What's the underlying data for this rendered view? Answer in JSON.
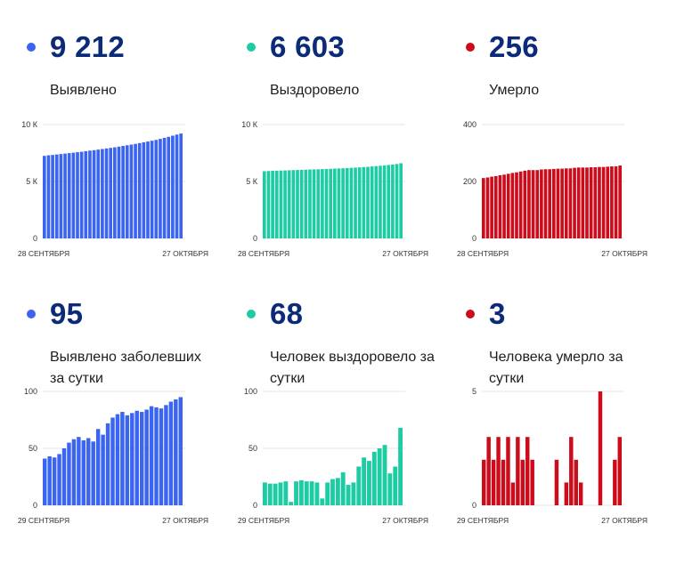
{
  "colors": {
    "blue": "#3b64f0",
    "green": "#1ecca4",
    "red": "#cc0c1a",
    "number": "#0b2a78"
  },
  "panels": [
    {
      "value": "9 212",
      "label": "Выявлено",
      "color_key": "blue"
    },
    {
      "value": "6 603",
      "label": "Выздоровело",
      "color_key": "green"
    },
    {
      "value": "256",
      "label": "Умерло",
      "color_key": "red"
    },
    {
      "value": "95",
      "label": "Выявлено заболевших за сутки",
      "color_key": "blue"
    },
    {
      "value": "68",
      "label": "Человек выздоровело за сутки",
      "color_key": "green"
    },
    {
      "value": "3",
      "label": "Человека умерло за сутки",
      "color_key": "red"
    }
  ],
  "chart_data": [
    {
      "type": "bar",
      "color_key": "blue",
      "ylim": [
        0,
        10000
      ],
      "yticks": [
        {
          "v": 0,
          "t": "0"
        },
        {
          "v": 5000,
          "t": "5 К"
        },
        {
          "v": 10000,
          "t": "10 К"
        }
      ],
      "xlabels": [
        "28 СЕНТЯБРЯ",
        "27 ОКТЯБРЯ"
      ],
      "values": [
        7250,
        7300,
        7330,
        7370,
        7410,
        7450,
        7490,
        7530,
        7570,
        7610,
        7660,
        7710,
        7750,
        7800,
        7850,
        7900,
        7950,
        8000,
        8060,
        8120,
        8180,
        8240,
        8300,
        8370,
        8440,
        8510,
        8580,
        8650,
        8740,
        8830,
        8920,
        9020,
        9117,
        9212
      ]
    },
    {
      "type": "bar",
      "color_key": "green",
      "ylim": [
        0,
        10000
      ],
      "yticks": [
        {
          "v": 0,
          "t": "0"
        },
        {
          "v": 5000,
          "t": "5 К"
        },
        {
          "v": 10000,
          "t": "10 К"
        }
      ],
      "xlabels": [
        "28 СЕНТЯБРЯ",
        "27 ОКТЯБРЯ"
      ],
      "values": [
        5900,
        5920,
        5935,
        5950,
        5960,
        5970,
        5985,
        6000,
        6010,
        6020,
        6035,
        6050,
        6060,
        6070,
        6085,
        6100,
        6115,
        6130,
        6145,
        6160,
        6175,
        6195,
        6215,
        6240,
        6265,
        6290,
        6320,
        6350,
        6380,
        6410,
        6450,
        6490,
        6535,
        6603
      ]
    },
    {
      "type": "bar",
      "color_key": "red",
      "ylim": [
        0,
        400
      ],
      "yticks": [
        {
          "v": 0,
          "t": "0"
        },
        {
          "v": 200,
          "t": "200"
        },
        {
          "v": 400,
          "t": "400"
        }
      ],
      "xlabels": [
        "28 СЕНТЯБРЯ",
        "27 ОКТЯБРЯ"
      ],
      "values": [
        212,
        214,
        217,
        219,
        222,
        224,
        227,
        230,
        232,
        235,
        238,
        240,
        240,
        240,
        242,
        243,
        243,
        244,
        245,
        245,
        246,
        246,
        248,
        249,
        249,
        249,
        250,
        250,
        251,
        251,
        252,
        253,
        253,
        256
      ]
    },
    {
      "type": "bar",
      "color_key": "blue",
      "ylim": [
        0,
        100
      ],
      "yticks": [
        {
          "v": 0,
          "t": "0"
        },
        {
          "v": 50,
          "t": "50"
        },
        {
          "v": 100,
          "t": "100"
        }
      ],
      "xlabels": [
        "29 СЕНТЯБРЯ",
        "27 ОКТЯБРЯ"
      ],
      "values": [
        41,
        43,
        42,
        45,
        50,
        55,
        58,
        60,
        57,
        59,
        56,
        67,
        62,
        72,
        77,
        80,
        82,
        79,
        81,
        83,
        82,
        84,
        87,
        86,
        85,
        88,
        91,
        93,
        95
      ]
    },
    {
      "type": "bar",
      "color_key": "green",
      "ylim": [
        0,
        100
      ],
      "yticks": [
        {
          "v": 0,
          "t": "0"
        },
        {
          "v": 50,
          "t": "50"
        },
        {
          "v": 100,
          "t": "100"
        }
      ],
      "xlabels": [
        "29 СЕНТЯБРЯ",
        "27 ОКТЯБРЯ"
      ],
      "values": [
        20,
        19,
        19,
        20,
        21,
        3,
        21,
        22,
        21,
        21,
        20,
        6,
        20,
        23,
        24,
        29,
        18,
        20,
        34,
        42,
        39,
        47,
        50,
        53,
        28,
        34,
        68
      ]
    },
    {
      "type": "bar",
      "color_key": "red",
      "ylim": [
        0,
        5
      ],
      "yticks": [
        {
          "v": 0,
          "t": "0"
        },
        {
          "v": 5,
          "t": "5"
        }
      ],
      "xlabels": [
        "29 СЕНТЯБРЯ",
        "27 ОКТЯБРЯ"
      ],
      "values": [
        2,
        3,
        2,
        3,
        2,
        3,
        1,
        3,
        2,
        3,
        2,
        0,
        0,
        0,
        0,
        2,
        0,
        1,
        3,
        2,
        1,
        0,
        0,
        0,
        5,
        0,
        0,
        2,
        3
      ]
    }
  ]
}
